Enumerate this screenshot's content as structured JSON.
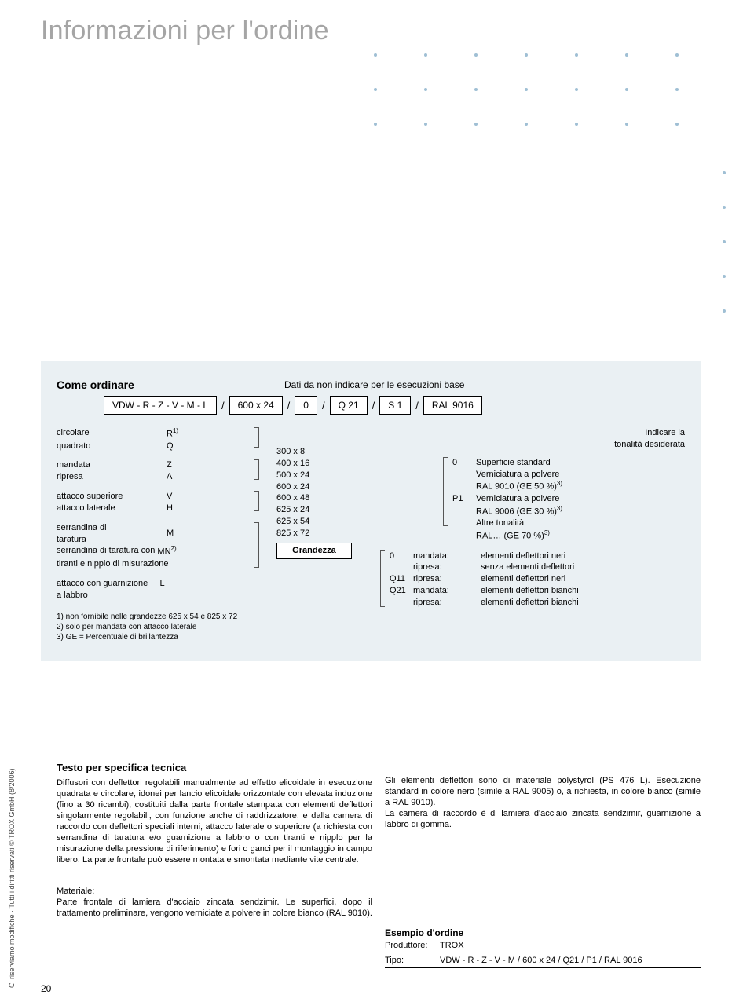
{
  "title": "Informazioni per l'ordine",
  "panel": {
    "how_to_order": "Come ordinare",
    "base_note": "Dati da non indicare per le esecuzioni base",
    "order_parts": [
      "VDW - R - Z - V - M - L",
      "600 x 24",
      "0",
      "Q 21",
      "S 1",
      "RAL 9016"
    ]
  },
  "left": {
    "shape": [
      {
        "label": "circolare",
        "code": "R",
        "sup": "1)"
      },
      {
        "label": "quadrato",
        "code": "Q",
        "sup": ""
      }
    ],
    "flow": [
      {
        "label": "mandata",
        "code": "Z"
      },
      {
        "label": "ripresa",
        "code": "A"
      }
    ],
    "attach": [
      {
        "label": "attacco superiore",
        "code": "V"
      },
      {
        "label": "attacco laterale",
        "code": "H"
      }
    ],
    "serrandina": {
      "line1a": "serrandina di",
      "line1b": "taratura",
      "code": "M",
      "line2": "serrandina di taratura con",
      "code2": "MN",
      "sup2": "2)",
      "line3": "tiranti e nipplo di misurazione"
    },
    "attacco_l": {
      "line1": "attacco con guarnizione",
      "line2": "a labbro",
      "code": "L"
    },
    "notes": [
      "1) non fornibile nelle grandezze 625 x 54 e 825 x 72",
      "2) solo per mandata con attacco laterale",
      "3) GE = Percentuale di brillantezza"
    ]
  },
  "sizes": {
    "list": [
      "300 x   8",
      "400 x 16",
      "500 x 24",
      "600 x 24",
      "600 x 48",
      "625 x 24",
      "625 x 54",
      "825 x 72"
    ],
    "grandezza": "Grandezza"
  },
  "right": {
    "tonalita": "Indicare la\ntonalità desiderata",
    "surface": [
      {
        "code": "0",
        "text": "Superficie standard\nVerniciatura a polvere\nRAL 9010 (GE 50 %)",
        "sup": "3)"
      },
      {
        "code": "P1",
        "text": "Verniciatura a polvere\nRAL 9006 (GE 30 %)",
        "sup": "3)"
      },
      {
        "code": "",
        "text": "Altre tonalità\nRAL… (GE 70 %)",
        "sup": "3)"
      }
    ],
    "defl": [
      {
        "code": "0",
        "k": "mandata:",
        "v": "elementi deflettori neri"
      },
      {
        "code": "",
        "k": "ripresa:",
        "v": "senza elementi deflettori"
      },
      {
        "code": "Q11",
        "k": "ripresa:",
        "v": "elementi deflettori neri"
      },
      {
        "code": "Q21",
        "k": "mandata:",
        "v": "elementi deflettori bianchi"
      },
      {
        "code": "",
        "k": "ripresa:",
        "v": "elementi deflettori bianchi"
      }
    ]
  },
  "body": {
    "tech_h": "Testo per specifica tecnica",
    "tech_p": "Diffusori con deflettori regolabili manualmente ad effetto elicoidale in esecuzione quadrata e circolare, idonei per lancio elicoidale orizzontale con elevata induzione (fino a 30 ricambi), costituiti dalla parte frontale stampata con elementi deflettori singolarmente regolabili, con funzione anche di raddrizzatore, e dalla camera di raccordo con deflettori speciali interni, attacco laterale o superiore (a richiesta con serrandina di taratura e/o guarnizione a labbro o con tiranti e nipplo per la misurazione della pressione di riferimento) e fori o ganci per il montaggio in campo libero. La parte frontale può essere montata e smontata mediante vite centrale.",
    "tech_p2": "Gli elementi deflettori sono di materiale polystyrol (PS 476 L). Esecuzione standard in colore nero (simile a RAL 9005) o, a richiesta, in colore bianco (simile a RAL 9010).\nLa camera di raccordo è di lamiera d'acciaio zincata sendzimir, guarnizione a labbro di gomma.",
    "mat_h": "Materiale:",
    "mat_p": "Parte frontale di lamiera d'acciaio zincata sendzimir. Le superfici, dopo il trattamento preliminare, vengono verniciate a polvere in colore bianco (RAL 9010).",
    "example_h": "Esempio d'ordine",
    "example_rows": [
      {
        "k": "Produttore:",
        "v": "TROX"
      },
      {
        "k": "Tipo:",
        "v": "VDW - R - Z - V - M / 600 x 24 / Q21 / P1 / RAL 9016"
      }
    ]
  },
  "side_text": "Ci riserviamo modifiche · Tutti i diritti riservati © TROX GmbH (8/2006)",
  "page_num": "20"
}
